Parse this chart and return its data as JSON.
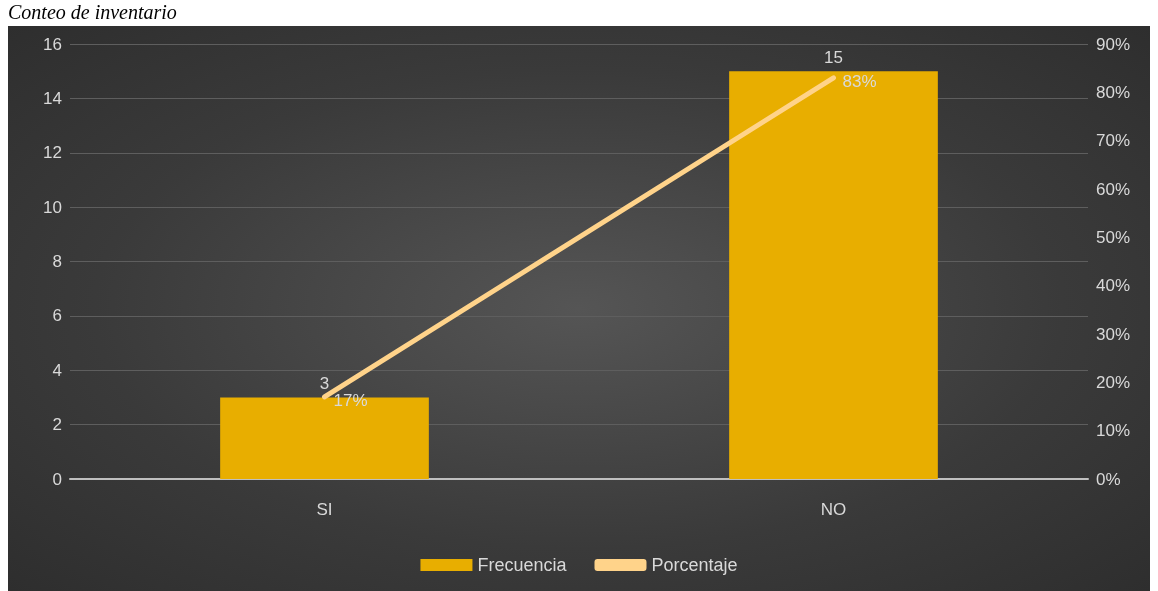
{
  "chart_data": {
    "type": "bar",
    "title": "Conteo de inventario",
    "categories": [
      "SI",
      "NO"
    ],
    "series": [
      {
        "name": "Frecuencia",
        "color": "#e8ae00",
        "values": [
          3,
          15
        ],
        "value_labels": [
          "3",
          "15"
        ]
      },
      {
        "name": "Porcentaje",
        "type": "line",
        "axis": "y2",
        "color": "#ffd38a",
        "values": [
          17,
          83
        ],
        "value_labels": [
          "17%",
          "83%"
        ]
      }
    ],
    "ylim": [
      0,
      16
    ],
    "yticks": [
      0,
      2,
      4,
      6,
      8,
      10,
      12,
      14,
      16
    ],
    "y2lim": [
      0,
      90
    ],
    "y2ticks": [
      {
        "value": 0,
        "label": "0%"
      },
      {
        "value": 10,
        "label": "10%"
      },
      {
        "value": 20,
        "label": "20%"
      },
      {
        "value": 30,
        "label": "30%"
      },
      {
        "value": 40,
        "label": "40%"
      },
      {
        "value": 50,
        "label": "50%"
      },
      {
        "value": 60,
        "label": "60%"
      },
      {
        "value": 70,
        "label": "70%"
      },
      {
        "value": 80,
        "label": "80%"
      },
      {
        "value": 90,
        "label": "90%"
      }
    ],
    "grid": "y",
    "legend": "bottom",
    "marker": "none"
  }
}
